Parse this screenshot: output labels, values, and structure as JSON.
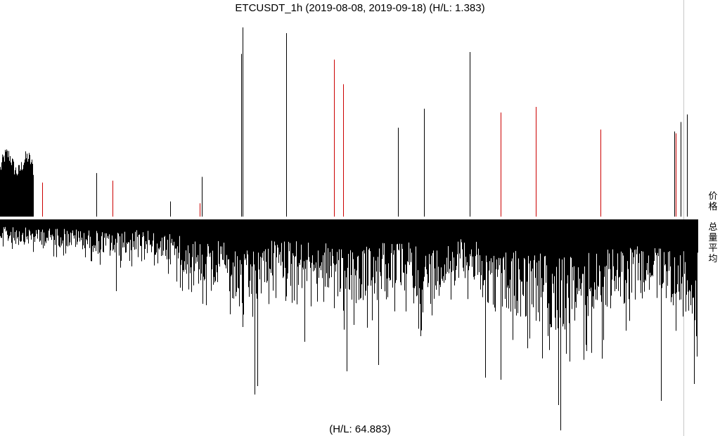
{
  "chart_data": {
    "type": "bar",
    "title": "ETCUSDT_1h (2019-08-08, 2019-09-18) (H/L: 1.383)",
    "bottom_label": "(H/L: 64.883)",
    "upper_panel_label": "价\n格",
    "lower_panel_label": "总\n量\n平\n均",
    "upper_series_name": "价格",
    "lower_series_name": "总量平均",
    "colors": {
      "bar": "#000000",
      "red": "#cc0000",
      "axis": "#c8c8c8",
      "background": "#ffffff"
    },
    "upper_ylim": [
      0,
      1
    ],
    "lower_ylim": [
      0,
      1
    ],
    "upper_spikes": [
      {
        "x": 60,
        "h": 0.18,
        "color": "red"
      },
      {
        "x": 137,
        "h": 0.23,
        "color": "black"
      },
      {
        "x": 160,
        "h": 0.19,
        "color": "red"
      },
      {
        "x": 242,
        "h": 0.08,
        "color": "black"
      },
      {
        "x": 284,
        "h": 0.07,
        "color": "red"
      },
      {
        "x": 287,
        "h": 0.21,
        "color": "black"
      },
      {
        "x": 343,
        "h": 0.86,
        "color": "black"
      },
      {
        "x": 345,
        "h": 1.0,
        "color": "black"
      },
      {
        "x": 407,
        "h": 0.97,
        "color": "black"
      },
      {
        "x": 475,
        "h": 0.83,
        "color": "red"
      },
      {
        "x": 488,
        "h": 0.7,
        "color": "red"
      },
      {
        "x": 566,
        "h": 0.47,
        "color": "black"
      },
      {
        "x": 603,
        "h": 0.57,
        "color": "black"
      },
      {
        "x": 668,
        "h": 0.87,
        "color": "black"
      },
      {
        "x": 712,
        "h": 0.55,
        "color": "red"
      },
      {
        "x": 762,
        "h": 0.58,
        "color": "red"
      },
      {
        "x": 854,
        "h": 0.46,
        "color": "red"
      },
      {
        "x": 959,
        "h": 0.45,
        "color": "black"
      },
      {
        "x": 961,
        "h": 0.44,
        "color": "red"
      },
      {
        "x": 968,
        "h": 0.5,
        "color": "black"
      },
      {
        "x": 977,
        "h": 0.54,
        "color": "black"
      }
    ],
    "lower_spikes": [
      {
        "x": 165,
        "h": 0.34
      },
      {
        "x": 288,
        "h": 0.4
      },
      {
        "x": 345,
        "h": 0.51
      },
      {
        "x": 362,
        "h": 0.83
      },
      {
        "x": 366,
        "h": 0.79
      },
      {
        "x": 433,
        "h": 0.58
      },
      {
        "x": 493,
        "h": 0.72
      },
      {
        "x": 538,
        "h": 0.69
      },
      {
        "x": 690,
        "h": 0.75
      },
      {
        "x": 712,
        "h": 0.76
      },
      {
        "x": 794,
        "h": 0.88
      },
      {
        "x": 797,
        "h": 1.0
      },
      {
        "x": 856,
        "h": 0.66
      },
      {
        "x": 940,
        "h": 0.86
      },
      {
        "x": 987,
        "h": 0.78
      },
      {
        "x": 991,
        "h": 0.65
      }
    ],
    "lower_envelope": [
      {
        "x": 0,
        "h": 0.1
      },
      {
        "x": 40,
        "h": 0.11
      },
      {
        "x": 80,
        "h": 0.12
      },
      {
        "x": 120,
        "h": 0.13
      },
      {
        "x": 160,
        "h": 0.17
      },
      {
        "x": 200,
        "h": 0.14
      },
      {
        "x": 240,
        "h": 0.19
      },
      {
        "x": 280,
        "h": 0.27
      },
      {
        "x": 320,
        "h": 0.3
      },
      {
        "x": 345,
        "h": 0.45
      },
      {
        "x": 380,
        "h": 0.28
      },
      {
        "x": 420,
        "h": 0.27
      },
      {
        "x": 460,
        "h": 0.3
      },
      {
        "x": 500,
        "h": 0.38
      },
      {
        "x": 540,
        "h": 0.32
      },
      {
        "x": 580,
        "h": 0.3
      },
      {
        "x": 605,
        "h": 0.4
      },
      {
        "x": 640,
        "h": 0.27
      },
      {
        "x": 668,
        "h": 0.25
      },
      {
        "x": 700,
        "h": 0.4
      },
      {
        "x": 740,
        "h": 0.42
      },
      {
        "x": 780,
        "h": 0.47
      },
      {
        "x": 800,
        "h": 0.5
      },
      {
        "x": 830,
        "h": 0.45
      },
      {
        "x": 860,
        "h": 0.4
      },
      {
        "x": 900,
        "h": 0.35
      },
      {
        "x": 940,
        "h": 0.32
      },
      {
        "x": 970,
        "h": 0.42
      },
      {
        "x": 992,
        "h": 0.4
      }
    ]
  }
}
